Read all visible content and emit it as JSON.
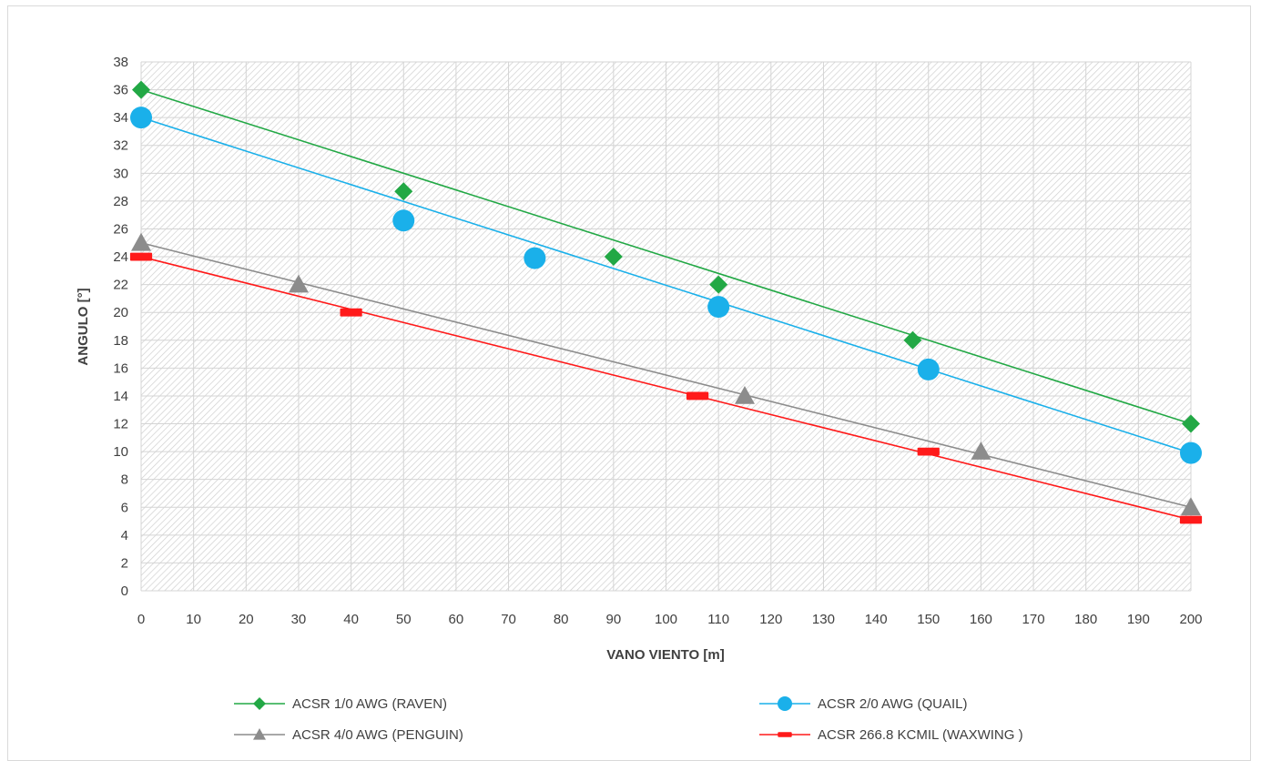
{
  "chart_data": {
    "type": "line",
    "title": "",
    "xlabel": "VANO VIENTO [m]",
    "ylabel": "ANGULO [°]",
    "xlim": [
      0,
      200
    ],
    "ylim": [
      0,
      38
    ],
    "xticks": [
      0,
      10,
      20,
      30,
      40,
      50,
      60,
      70,
      80,
      90,
      100,
      110,
      120,
      130,
      140,
      150,
      160,
      170,
      180,
      190,
      200
    ],
    "yticks": [
      0,
      2,
      4,
      6,
      8,
      10,
      12,
      14,
      16,
      18,
      20,
      22,
      24,
      26,
      28,
      30,
      32,
      34,
      36,
      38
    ],
    "grid": true,
    "plot_background": "hatched",
    "legend_position": "bottom",
    "series": [
      {
        "name": "ACSR 1/0 AWG (RAVEN)",
        "color": "#22a845",
        "marker": "diamond",
        "x": [
          0,
          50,
          90,
          110,
          147,
          200
        ],
        "y": [
          36,
          28.7,
          24,
          22,
          18,
          12
        ]
      },
      {
        "name": "ACSR 2/0 AWG (QUAIL)",
        "color": "#1ab0ea",
        "marker": "circle",
        "x": [
          0,
          50,
          75,
          110,
          150,
          200
        ],
        "y": [
          34,
          26.6,
          23.9,
          20.4,
          15.9,
          9.9
        ]
      },
      {
        "name": "ACSR 4/0 AWG (PENGUIN)",
        "color": "#8c8c8c",
        "marker": "triangle",
        "x": [
          0,
          30,
          115,
          160,
          200
        ],
        "y": [
          25,
          22,
          14,
          10,
          6
        ]
      },
      {
        "name": "ACSR 266.8 KCMIL (WAXWING )",
        "color": "#ff1a1a",
        "marker": "dash",
        "x": [
          0,
          40,
          106,
          150,
          200
        ],
        "y": [
          24,
          20,
          14,
          10,
          5.1
        ]
      }
    ]
  }
}
